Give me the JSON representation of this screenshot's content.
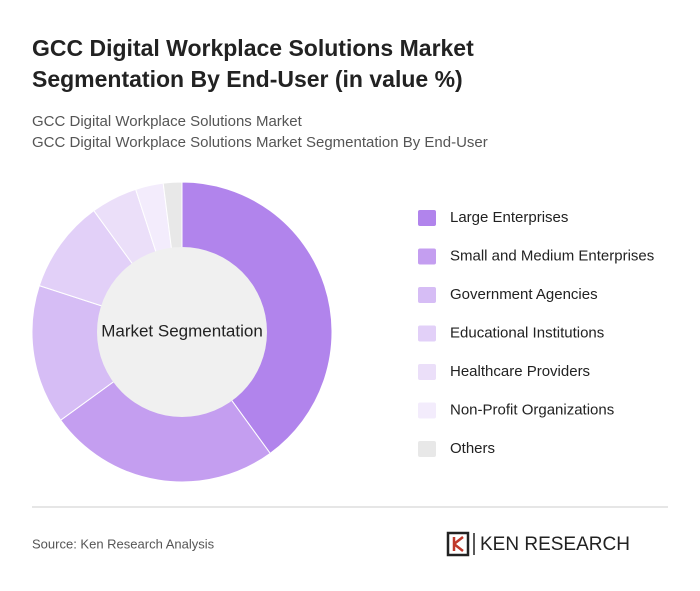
{
  "chart_data": {
    "type": "donut",
    "title": "GCC Digital Workplace Solutions Market Segmentation By End-User (in value %)",
    "subtitle": [
      "GCC Digital Workplace Solutions Market",
      "GCC Digital Workplace Solutions Market Segmentation By End-User"
    ],
    "center_label": "Market Segmentation",
    "categories": [
      "Large Enterprises",
      "Small and Medium Enterprises",
      "Government Agencies",
      "Educational Institutions",
      "Healthcare Providers",
      "Non-Profit Organizations",
      "Others"
    ],
    "values": [
      40,
      25,
      15,
      10,
      5,
      3,
      2
    ],
    "colors": [
      "#b184ec",
      "#c49ef0",
      "#d6bdf5",
      "#e2d0f8",
      "#ebdff9",
      "#f3ecfc",
      "#e8e8e8"
    ],
    "source": "Source: Ken Research Analysis",
    "brand": "KEN RESEARCH"
  }
}
